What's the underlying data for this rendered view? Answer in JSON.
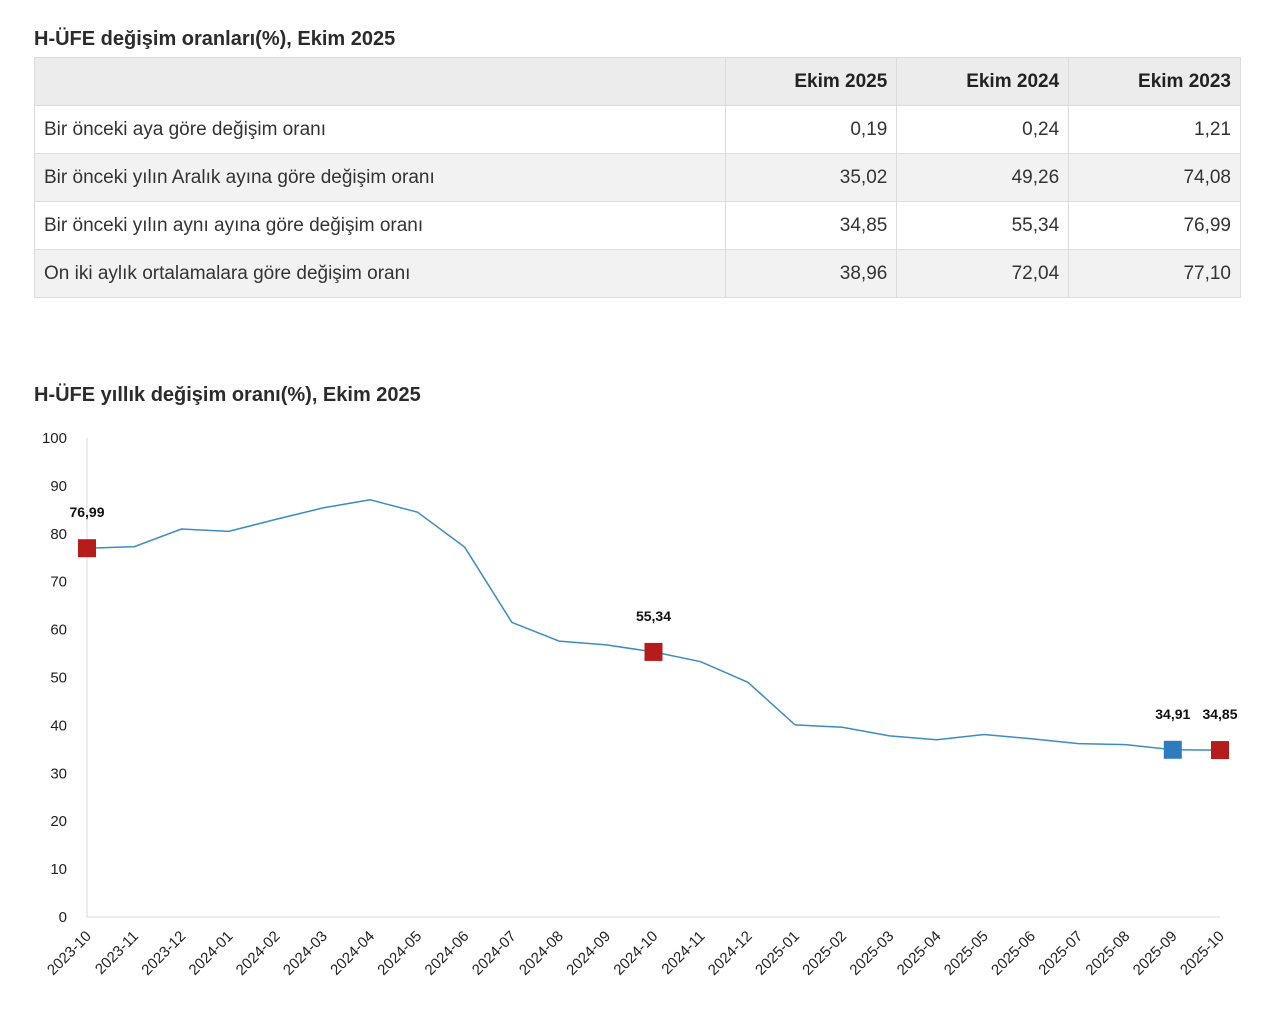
{
  "table": {
    "title": "H-ÜFE değişim oranları(%), Ekim 2025",
    "columns": [
      "",
      "Ekim 2025",
      "Ekim 2024",
      "Ekim 2023"
    ],
    "rows": [
      {
        "label": "Bir önceki aya göre değişim oranı",
        "values": [
          "0,19",
          "0,24",
          "1,21"
        ]
      },
      {
        "label": "Bir önceki yılın Aralık ayına göre değişim oranı",
        "values": [
          "35,02",
          "49,26",
          "74,08"
        ]
      },
      {
        "label": "Bir önceki yılın aynı ayına göre değişim oranı",
        "values": [
          "34,85",
          "55,34",
          "76,99"
        ]
      },
      {
        "label": "On iki aylık ortalamalara göre değişim oranı",
        "values": [
          "38,96",
          "72,04",
          "77,10"
        ]
      }
    ]
  },
  "chart": {
    "title": "H-ÜFE yıllık değişim oranı(%), Ekim 2025"
  },
  "chart_data": {
    "type": "line",
    "title": "H-ÜFE yıllık değişim oranı(%), Ekim 2025",
    "xlabel": "",
    "ylabel": "",
    "ylim": [
      0,
      100
    ],
    "yticks": [
      0,
      10,
      20,
      30,
      40,
      50,
      60,
      70,
      80,
      90,
      100
    ],
    "grid": false,
    "legend": "none",
    "x": [
      "2023-10",
      "2023-11",
      "2023-12",
      "2024-01",
      "2024-02",
      "2024-03",
      "2024-04",
      "2024-05",
      "2024-06",
      "2024-07",
      "2024-08",
      "2024-09",
      "2024-10",
      "2024-11",
      "2024-12",
      "2025-01",
      "2025-02",
      "2025-03",
      "2025-04",
      "2025-05",
      "2025-06",
      "2025-07",
      "2025-08",
      "2025-09",
      "2025-10"
    ],
    "series": [
      {
        "values": [
          76.99,
          77.3,
          81.0,
          80.5,
          83.0,
          85.4,
          87.1,
          84.5,
          77.2,
          61.5,
          57.6,
          56.8,
          55.34,
          53.3,
          49.0,
          40.1,
          39.6,
          37.8,
          37.0,
          38.1,
          37.2,
          36.2,
          36.0,
          34.91,
          34.85
        ],
        "color": "#3d8bc4"
      }
    ],
    "markers": [
      {
        "x": "2023-10",
        "value": 76.99,
        "label": "76,99",
        "color": "#b71c1c"
      },
      {
        "x": "2024-10",
        "value": 55.34,
        "label": "55,34",
        "color": "#b71c1c"
      },
      {
        "x": "2025-09",
        "value": 34.91,
        "label": "34,91",
        "color": "#2e7bbf"
      },
      {
        "x": "2025-10",
        "value": 34.85,
        "label": "34,85",
        "color": "#b71c1c"
      }
    ]
  }
}
